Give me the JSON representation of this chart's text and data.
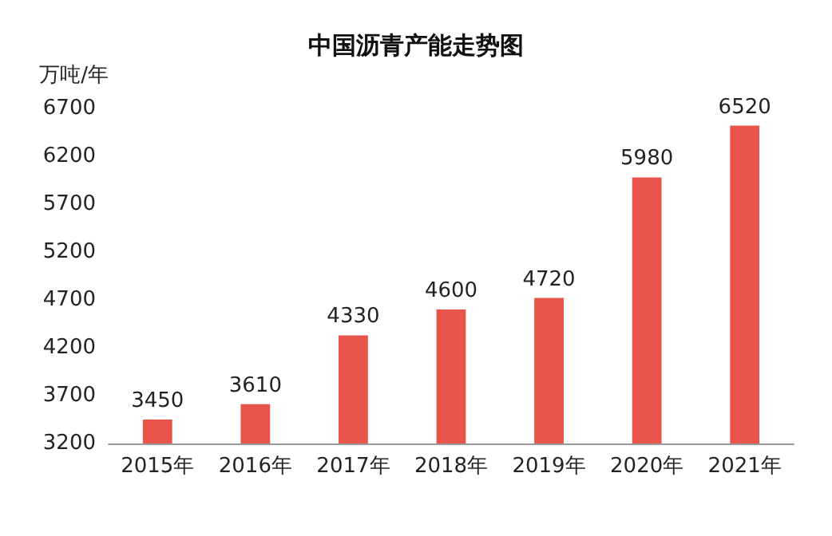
{
  "chart_data": {
    "type": "bar",
    "title": "中国沥青产能走势图",
    "ylabel": "万吨/年",
    "categories": [
      "2015年",
      "2016年",
      "2017年",
      "2018年",
      "2019年",
      "2020年",
      "2021年"
    ],
    "values": [
      3450,
      3610,
      4330,
      4600,
      4720,
      5980,
      6520
    ],
    "color": "#e8534a",
    "ylim": [
      3200,
      6700
    ],
    "yticks": [
      3200,
      3700,
      4200,
      4700,
      5200,
      5700,
      6200,
      6700
    ],
    "grid": false,
    "data_labels": true
  }
}
